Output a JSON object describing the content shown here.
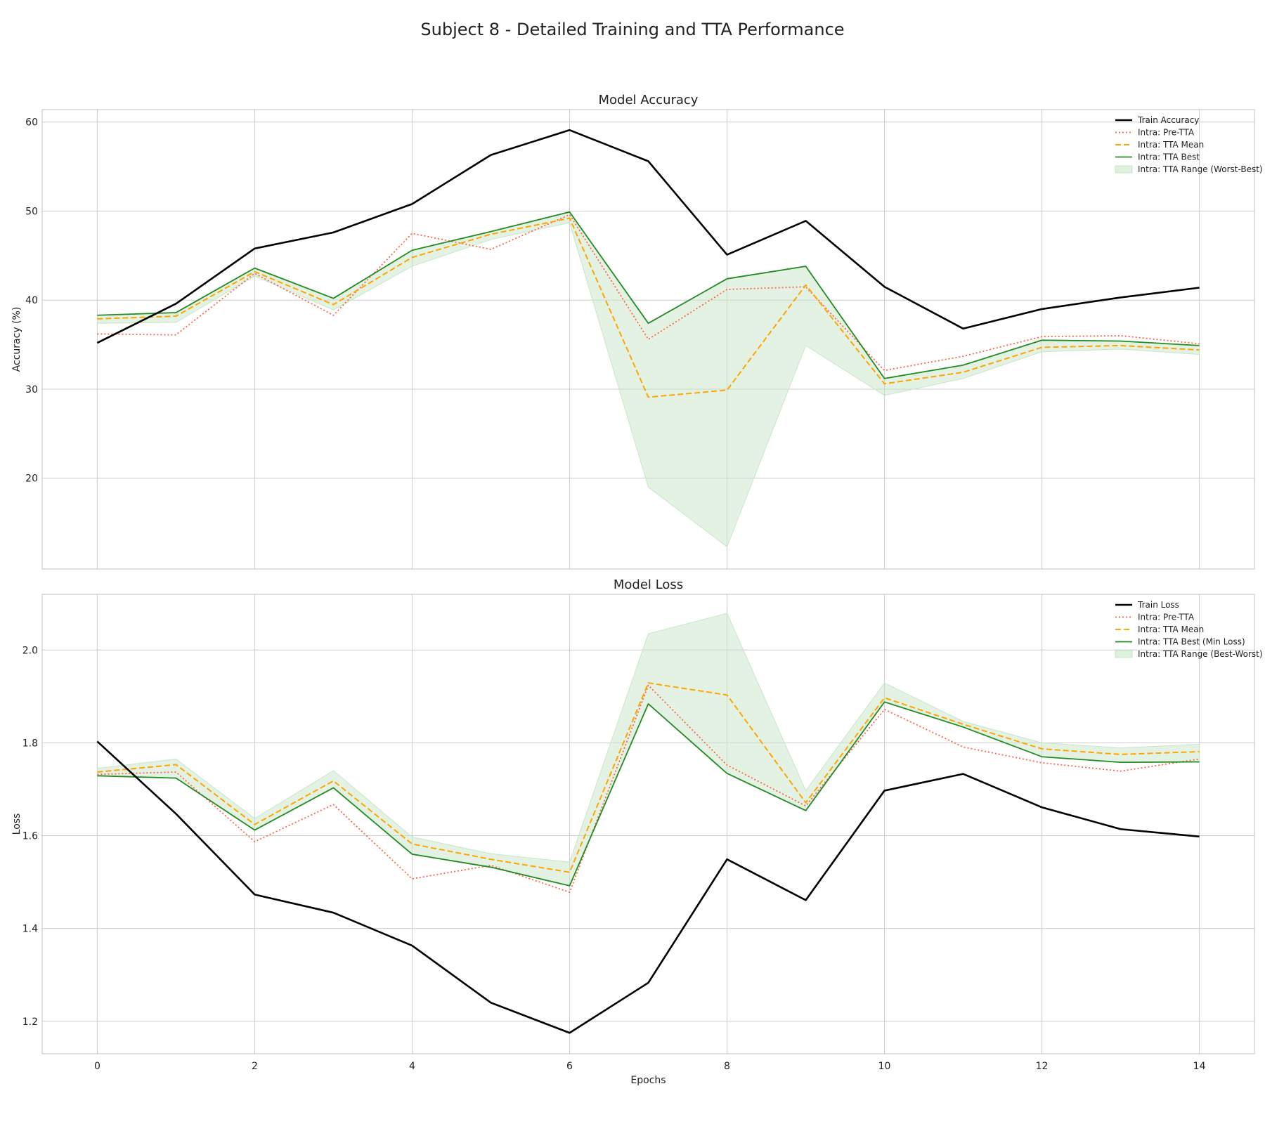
{
  "figure_title": "Subject 8 - Detailed Training and TTA Performance",
  "colors": {
    "train": "#000000",
    "pre_tta": "#ff6347",
    "tta_mean": "#ffa500",
    "tta_best": "#228b22",
    "tta_range": "#c8e6c8",
    "grid": "#cccccc",
    "spine": "#cccccc"
  },
  "chart_data": [
    {
      "type": "line",
      "title": "Model Accuracy",
      "xlabel": "",
      "ylabel": "Accuracy (%)",
      "x": [
        0,
        1,
        2,
        3,
        4,
        5,
        6,
        7,
        8,
        9,
        10,
        11,
        12,
        13,
        14
      ],
      "xlim": [
        -0.7,
        14.7
      ],
      "ylim": [
        9.8,
        61.4
      ],
      "xticks": [
        0,
        2,
        4,
        6,
        8,
        10,
        12,
        14
      ],
      "yticks": [
        20,
        30,
        40,
        50,
        60
      ],
      "grid": true,
      "legend_position": "top-right",
      "series": [
        {
          "name": "Train Accuracy",
          "style": "solid-thick",
          "color_key": "train",
          "values": [
            35.2,
            39.6,
            45.8,
            47.6,
            50.8,
            56.3,
            59.1,
            55.6,
            45.1,
            48.9,
            41.5,
            36.8,
            39.0,
            40.3,
            41.4
          ]
        },
        {
          "name": "Intra: Pre-TTA",
          "style": "dotted",
          "color_key": "pre_tta",
          "values": [
            36.2,
            36.1,
            43.0,
            38.3,
            47.5,
            45.7,
            49.6,
            35.6,
            41.2,
            41.5,
            32.1,
            33.7,
            35.9,
            36.0,
            35.1
          ]
        },
        {
          "name": "Intra: TTA Mean",
          "style": "dashed",
          "color_key": "tta_mean",
          "values": [
            37.9,
            38.2,
            43.2,
            39.5,
            44.8,
            47.4,
            49.2,
            29.1,
            29.9,
            41.7,
            30.6,
            31.9,
            34.7,
            34.9,
            34.4
          ]
        },
        {
          "name": "Intra: TTA Best",
          "style": "solid",
          "color_key": "tta_best",
          "values": [
            38.3,
            38.6,
            43.6,
            40.2,
            45.6,
            47.7,
            49.9,
            37.4,
            42.4,
            43.8,
            31.2,
            32.7,
            35.5,
            35.4,
            34.9
          ]
        }
      ],
      "range": {
        "name": "Intra: TTA Range (Worst-Best)",
        "color_key": "tta_range",
        "lower": [
          37.4,
          37.5,
          42.7,
          38.9,
          43.8,
          46.8,
          48.7,
          19.0,
          12.3,
          34.9,
          29.3,
          31.2,
          34.2,
          34.5,
          33.9
        ],
        "upper": [
          38.3,
          38.6,
          43.6,
          40.2,
          45.6,
          47.7,
          49.9,
          37.4,
          42.4,
          43.8,
          31.2,
          32.7,
          35.5,
          35.4,
          34.9
        ]
      }
    },
    {
      "type": "line",
      "title": "Model Loss",
      "xlabel": "Epochs",
      "ylabel": "Loss",
      "x": [
        0,
        1,
        2,
        3,
        4,
        5,
        6,
        7,
        8,
        9,
        10,
        11,
        12,
        13,
        14
      ],
      "xlim": [
        -0.7,
        14.7
      ],
      "ylim": [
        1.13,
        2.12
      ],
      "xticks": [
        0,
        2,
        4,
        6,
        8,
        10,
        12,
        14
      ],
      "yticks": [
        1.2,
        1.4,
        1.6,
        1.8,
        2.0
      ],
      "ytick_labels": [
        "1.2",
        "1.4",
        "1.6",
        "1.8",
        "2.0"
      ],
      "grid": true,
      "legend_position": "top-right",
      "series": [
        {
          "name": "Train Loss",
          "style": "solid-thick",
          "color_key": "train",
          "values": [
            1.803,
            1.647,
            1.473,
            1.434,
            1.363,
            1.24,
            1.175,
            1.283,
            1.549,
            1.461,
            1.697,
            1.733,
            1.661,
            1.614,
            1.598
          ]
        },
        {
          "name": "Intra: Pre-TTA",
          "style": "dotted",
          "color_key": "pre_tta",
          "values": [
            1.732,
            1.737,
            1.587,
            1.667,
            1.507,
            1.536,
            1.478,
            1.924,
            1.752,
            1.664,
            1.872,
            1.791,
            1.757,
            1.739,
            1.765
          ]
        },
        {
          "name": "Intra: TTA Mean",
          "style": "dashed",
          "color_key": "tta_mean",
          "values": [
            1.737,
            1.753,
            1.624,
            1.718,
            1.582,
            1.549,
            1.521,
            1.929,
            1.903,
            1.671,
            1.897,
            1.84,
            1.787,
            1.775,
            1.781
          ]
        },
        {
          "name": "Intra: TTA Best (Min Loss)",
          "style": "solid",
          "color_key": "tta_best",
          "values": [
            1.729,
            1.724,
            1.612,
            1.703,
            1.56,
            1.532,
            1.492,
            1.884,
            1.734,
            1.654,
            1.888,
            1.834,
            1.77,
            1.758,
            1.759
          ]
        }
      ],
      "range": {
        "name": "Intra: TTA Range (Best-Worst)",
        "color_key": "tta_range",
        "lower": [
          1.729,
          1.724,
          1.612,
          1.703,
          1.56,
          1.532,
          1.492,
          1.884,
          1.734,
          1.654,
          1.888,
          1.834,
          1.77,
          1.758,
          1.759
        ],
        "upper": [
          1.745,
          1.765,
          1.637,
          1.74,
          1.597,
          1.561,
          1.543,
          2.035,
          2.079,
          1.697,
          1.929,
          1.846,
          1.8,
          1.789,
          1.797
        ]
      }
    }
  ]
}
